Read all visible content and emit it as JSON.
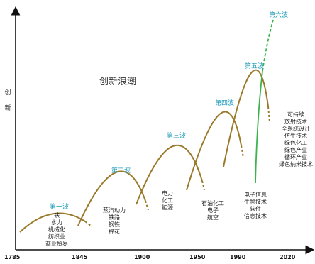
{
  "title": "创新浪潮",
  "y_axis_label": "创新",
  "x_ticks": [
    "1785",
    "1845",
    "1900",
    "1950",
    "1990",
    "2020"
  ],
  "waves": [
    {
      "name": "第一波",
      "items": [
        "铁",
        "水力",
        "机械化",
        "纺织业",
        "商业贸易"
      ]
    },
    {
      "name": "第二波",
      "items": [
        "蒸汽动力",
        "铁路",
        "钢铁",
        "棉花"
      ]
    },
    {
      "name": "第三波",
      "items": [
        "电力",
        "化工",
        "能源"
      ]
    },
    {
      "name": "第四波",
      "items": [
        "石油化工",
        "电子",
        "航空"
      ]
    },
    {
      "name": "第五波",
      "items": [
        "电子信息",
        "生物技术",
        "软件",
        "信息技术"
      ]
    },
    {
      "name": "第六波",
      "items": [
        "可持续",
        "放射技术",
        "全系统设计",
        "仿生技术",
        "绿色化工",
        "绿色产业",
        "循环产业",
        "绿色纳米技术"
      ]
    }
  ],
  "colors": {
    "wave_curve": "#9a7a2a",
    "wave_label": "#1f9bb8",
    "sixth_wave": "#3cb44b",
    "axis": "#111111"
  }
}
